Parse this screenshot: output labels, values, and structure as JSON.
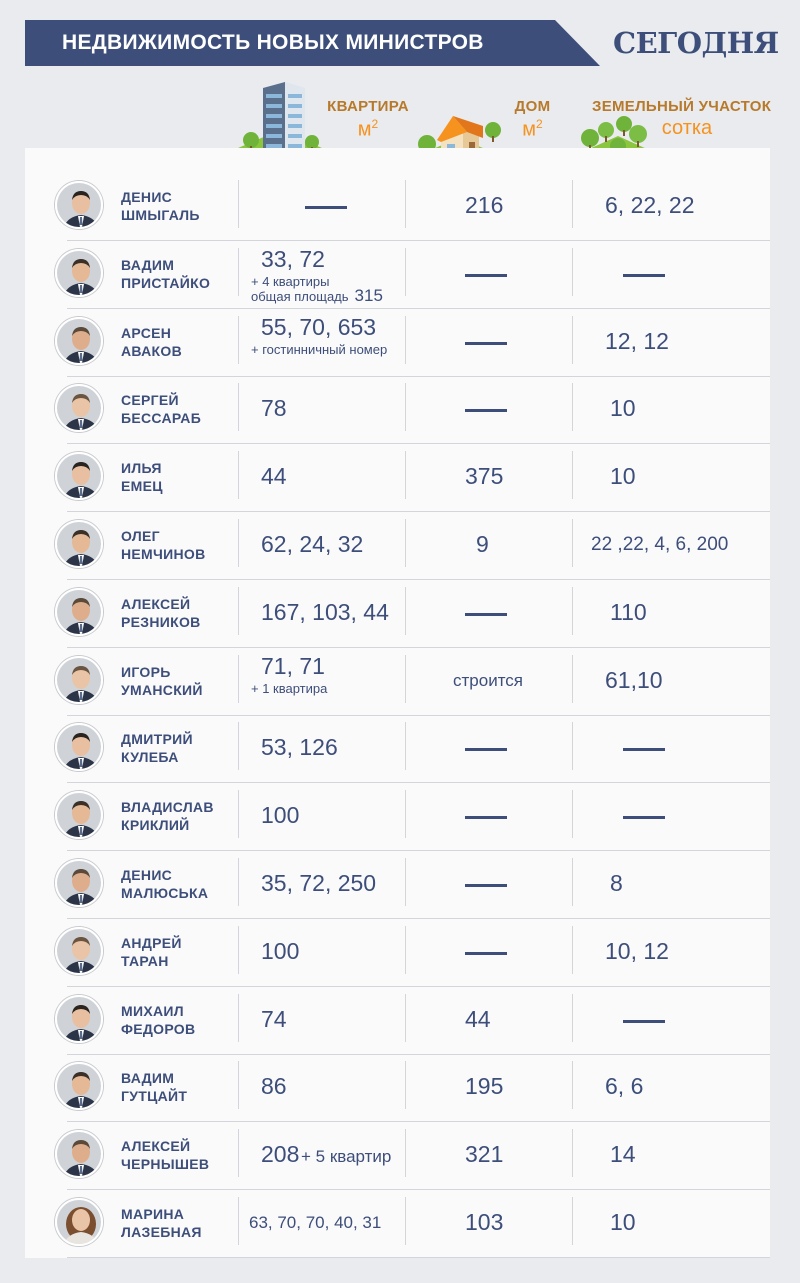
{
  "header": {
    "title": "НЕДВИЖИМОСТЬ НОВЫХ МИНИСТРОВ",
    "logo": "СЕГОДНЯ",
    "banner_color": "#3d4e7a"
  },
  "columns": {
    "apartment": {
      "label": "КВАРТИРА",
      "unit": "м",
      "unit_sup": "2",
      "icon": "apartment-building-icon"
    },
    "house": {
      "label": "ДОМ",
      "unit": "м",
      "unit_sup": "2",
      "icon": "house-icon"
    },
    "land": {
      "label": "ЗЕМЕЛЬНЫЙ  УЧАСТОК",
      "unit": "сотка",
      "icon": "land-plot-icon"
    }
  },
  "ministers": [
    {
      "first": "ДЕНИС",
      "last": "ШМЫГАЛЬ",
      "apartment": "",
      "house": "216",
      "land": "6, 22, 22"
    },
    {
      "first": "ВАДИМ",
      "last": "ПРИСТАЙКО",
      "apartment": "33, 72",
      "apt_note1": "+ 4 квартиры",
      "apt_note2": "общая площадь",
      "apt_note2_num": "315",
      "house": "",
      "land": ""
    },
    {
      "first": "АРСЕН",
      "last": "АВАКОВ",
      "apartment": "55, 70, 653",
      "apt_note1": "+ гостинничный номер",
      "house": "",
      "land": "12, 12"
    },
    {
      "first": "СЕРГЕЙ",
      "last": "БЕССАРАБ",
      "apartment": "78",
      "house": "",
      "land": "10"
    },
    {
      "first": "ИЛЬЯ",
      "last": "ЕМЕЦ",
      "apartment": "44",
      "house": "375",
      "land": "10"
    },
    {
      "first": "ОЛЕГ",
      "last": "НЕМЧИНОВ",
      "apartment": "62, 24, 32",
      "house": "9",
      "land": "22 ,22, 4, 6, 200"
    },
    {
      "first": "АЛЕКСЕЙ",
      "last": "РЕЗНИКОВ",
      "apartment": "167, 103, 44",
      "house": "",
      "land": "110"
    },
    {
      "first": "ИГОРЬ",
      "last": "УМАНСКИЙ",
      "apartment": "71, 71",
      "apt_note1": "+ 1 квартира",
      "house": "строится",
      "land": "61,10"
    },
    {
      "first": "ДМИТРИЙ",
      "last": "КУЛЕБА",
      "apartment": "53, 126",
      "house": "",
      "land": ""
    },
    {
      "first": "ВЛАДИСЛАВ",
      "last": "КРИКЛИЙ",
      "apartment": "100",
      "house": "",
      "land": ""
    },
    {
      "first": "ДЕНИС",
      "last": "МАЛЮСЬКА",
      "apartment": "35, 72, 250",
      "house": "",
      "land": "8"
    },
    {
      "first": "АНДРЕЙ",
      "last": "ТАРАН",
      "apartment": "100",
      "house": "",
      "land": "10, 12"
    },
    {
      "first": "МИХАИЛ",
      "last": "ФЕДОРОВ",
      "apartment": "74",
      "house": "44",
      "land": ""
    },
    {
      "first": "ВАДИМ",
      "last": "ГУТЦАЙТ",
      "apartment": "86",
      "house": "195",
      "land": "6, 6"
    },
    {
      "first": "АЛЕКСЕЙ",
      "last": "ЧЕРНЫШЕВ",
      "apartment": "208",
      "apt_inline": "+ 5 квартир",
      "house": "321",
      "land": "14"
    },
    {
      "first": "МАРИНА",
      "last": "ЛАЗЕБНАЯ",
      "apartment": "63, 70, 70, 40, 31",
      "house": "103",
      "land": "10"
    }
  ]
}
